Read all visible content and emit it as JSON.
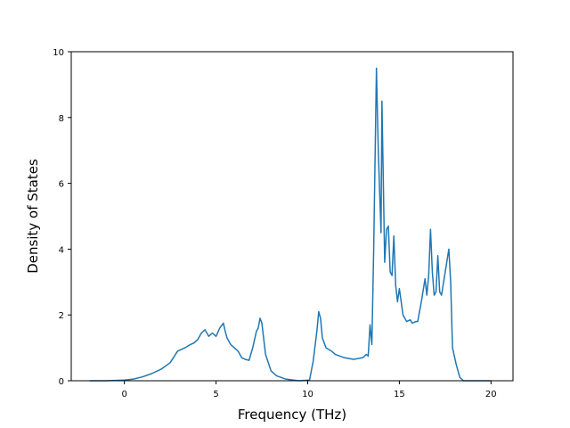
{
  "chart_data": {
    "type": "line",
    "title": "",
    "xlabel": "Frequency (THz)",
    "ylabel": "Density of States",
    "xlim": [
      -2.9,
      21.2
    ],
    "ylim": [
      0,
      10
    ],
    "xticks": [
      0,
      5,
      10,
      15,
      20
    ],
    "yticks": [
      0,
      2,
      4,
      6,
      8,
      10
    ],
    "grid": false,
    "colors": {
      "line": "#1f77b4",
      "axes": "#000000",
      "background": "#ffffff"
    },
    "series": [
      {
        "x": [
          -1.9,
          -1.0,
          0.0,
          0.5,
          1.0,
          1.5,
          2.0,
          2.5,
          2.9,
          3.1,
          3.3,
          3.6,
          3.8,
          4.0,
          4.2,
          4.4,
          4.6,
          4.8,
          5.0,
          5.2,
          5.4,
          5.5,
          5.6,
          5.8,
          6.0,
          6.2,
          6.4,
          6.6,
          6.8,
          7.0,
          7.2,
          7.3,
          7.4,
          7.5,
          7.7,
          8.0,
          8.3,
          8.8,
          9.5,
          10.1,
          10.3,
          10.5,
          10.6,
          10.7,
          10.8,
          11.0,
          11.3,
          11.5,
          12.0,
          12.5,
          13.0,
          13.2,
          13.3,
          13.4,
          13.5,
          13.6,
          13.75,
          13.85,
          14.0,
          14.05,
          14.2,
          14.3,
          14.4,
          14.5,
          14.6,
          14.7,
          14.8,
          14.9,
          15.0,
          15.2,
          15.4,
          15.6,
          15.7,
          15.9,
          16.0,
          16.2,
          16.4,
          16.5,
          16.6,
          16.7,
          16.8,
          16.9,
          17.0,
          17.1,
          17.2,
          17.3,
          17.5,
          17.7,
          17.8,
          17.9,
          18.1,
          18.3,
          18.5,
          19.0,
          20.0
        ],
        "y": [
          0,
          0,
          0.02,
          0.05,
          0.12,
          0.22,
          0.35,
          0.55,
          0.9,
          0.95,
          1.0,
          1.1,
          1.15,
          1.25,
          1.45,
          1.55,
          1.35,
          1.45,
          1.35,
          1.6,
          1.75,
          1.5,
          1.3,
          1.1,
          1.0,
          0.9,
          0.7,
          0.65,
          0.62,
          1.0,
          1.5,
          1.6,
          1.9,
          1.75,
          0.8,
          0.3,
          0.15,
          0.05,
          0,
          0.02,
          0.6,
          1.5,
          2.1,
          1.9,
          1.3,
          1.0,
          0.9,
          0.8,
          0.7,
          0.65,
          0.7,
          0.8,
          0.75,
          1.7,
          1.1,
          4.0,
          9.5,
          7.0,
          4.5,
          8.5,
          3.6,
          4.6,
          4.7,
          3.3,
          3.2,
          4.4,
          2.9,
          2.4,
          2.8,
          2.0,
          1.8,
          1.85,
          1.75,
          1.8,
          1.8,
          2.4,
          3.1,
          2.6,
          3.2,
          4.6,
          3.3,
          2.6,
          2.7,
          3.8,
          2.7,
          2.6,
          3.3,
          4.0,
          3.0,
          1.0,
          0.5,
          0.1,
          0,
          0,
          0
        ]
      }
    ]
  }
}
